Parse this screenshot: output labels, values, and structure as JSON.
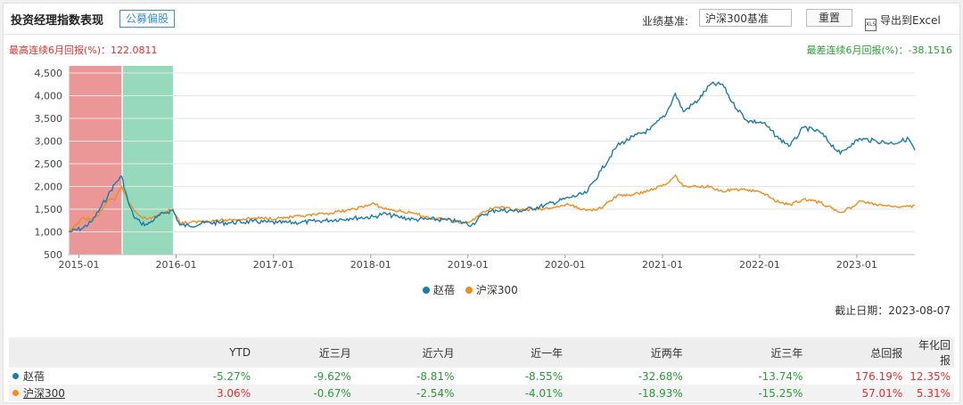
{
  "header": {
    "title": "投资经理指数表现",
    "tag": "公募偏股",
    "benchmark_label": "业绩基准:",
    "benchmark_value": "沪深300基准",
    "reset_label": "重置",
    "export_icon_text": "XLS",
    "export_label": "导出到Excel"
  },
  "stats": {
    "best_label": "最高连续6月回报(%)：",
    "best_value": "122.0811",
    "worst_label": "最差连续6月回报(%)：",
    "worst_value": "-38.1516"
  },
  "as_of": "截止日期：2023-08-07",
  "colors": {
    "manager": "#1b7ca8",
    "benchmark": "#f08c1c",
    "best_band": "#e06060",
    "worst_band": "#5fc49a"
  },
  "chart_data": {
    "type": "line",
    "title": "",
    "xlabel": "",
    "ylabel": "",
    "x_ticks": [
      "2015-01",
      "2016-01",
      "2017-01",
      "2018-01",
      "2019-01",
      "2020-01",
      "2021-01",
      "2022-01",
      "2023-01"
    ],
    "y_ticks": [
      "500",
      "1,000",
      "1,500",
      "2,000",
      "2,500",
      "3,000",
      "3,500",
      "4,000",
      "4,500"
    ],
    "xlim": [
      "2014-11-20",
      "2023-08-07"
    ],
    "ylim": [
      500,
      4500
    ],
    "legend": "bottom",
    "grid": true,
    "bands": [
      {
        "name": "best-6m",
        "from": "2014-11-25",
        "to": "2015-06-10"
      },
      {
        "name": "worst-6m",
        "from": "2015-06-15",
        "to": "2015-12-20"
      }
    ],
    "series": [
      {
        "name": "赵蓓",
        "points": [
          [
            "2014-11-25",
            1000
          ],
          [
            "2015-01-15",
            1080
          ],
          [
            "2015-02-20",
            1240
          ],
          [
            "2015-03-20",
            1500
          ],
          [
            "2015-04-20",
            1800
          ],
          [
            "2015-05-15",
            2050
          ],
          [
            "2015-06-10",
            2230
          ],
          [
            "2015-07-05",
            1650
          ],
          [
            "2015-07-25",
            1350
          ],
          [
            "2015-08-20",
            1200
          ],
          [
            "2015-09-15",
            1160
          ],
          [
            "2015-10-20",
            1320
          ],
          [
            "2015-11-20",
            1420
          ],
          [
            "2015-12-20",
            1480
          ],
          [
            "2016-01-15",
            1150
          ],
          [
            "2016-02-20",
            1130
          ],
          [
            "2016-04-15",
            1200
          ],
          [
            "2016-07-15",
            1200
          ],
          [
            "2016-10-15",
            1230
          ],
          [
            "2017-01-15",
            1200
          ],
          [
            "2017-04-15",
            1210
          ],
          [
            "2017-07-15",
            1250
          ],
          [
            "2017-10-15",
            1300
          ],
          [
            "2018-01-15",
            1330
          ],
          [
            "2018-02-15",
            1400
          ],
          [
            "2018-04-15",
            1330
          ],
          [
            "2018-06-15",
            1270
          ],
          [
            "2018-08-15",
            1280
          ],
          [
            "2018-10-15",
            1260
          ],
          [
            "2018-12-20",
            1200
          ],
          [
            "2019-01-15",
            1150
          ],
          [
            "2019-02-28",
            1380
          ],
          [
            "2019-04-15",
            1480
          ],
          [
            "2019-07-15",
            1460
          ],
          [
            "2019-10-15",
            1580
          ],
          [
            "2020-01-15",
            1750
          ],
          [
            "2020-03-20",
            1850
          ],
          [
            "2020-05-15",
            2350
          ],
          [
            "2020-07-15",
            2900
          ],
          [
            "2020-09-15",
            3100
          ],
          [
            "2020-11-15",
            3250
          ],
          [
            "2021-01-15",
            3600
          ],
          [
            "2021-02-18",
            4050
          ],
          [
            "2021-03-20",
            3650
          ],
          [
            "2021-05-15",
            3900
          ],
          [
            "2021-06-30",
            4250
          ],
          [
            "2021-08-15",
            4250
          ],
          [
            "2021-09-20",
            3850
          ],
          [
            "2021-11-15",
            3450
          ],
          [
            "2022-01-15",
            3400
          ],
          [
            "2022-03-15",
            3050
          ],
          [
            "2022-04-26",
            2900
          ],
          [
            "2022-06-15",
            3300
          ],
          [
            "2022-08-15",
            3200
          ],
          [
            "2022-10-31",
            2720
          ],
          [
            "2022-12-15",
            2950
          ],
          [
            "2023-01-15",
            3050
          ],
          [
            "2023-03-15",
            3000
          ],
          [
            "2023-05-15",
            2950
          ],
          [
            "2023-07-15",
            3050
          ],
          [
            "2023-08-07",
            2800
          ]
        ]
      },
      {
        "name": "沪深300",
        "points": [
          [
            "2014-11-25",
            1000
          ],
          [
            "2015-01-15",
            1300
          ],
          [
            "2015-02-20",
            1280
          ],
          [
            "2015-03-20",
            1400
          ],
          [
            "2015-04-20",
            1700
          ],
          [
            "2015-05-15",
            1700
          ],
          [
            "2015-06-10",
            2000
          ],
          [
            "2015-07-05",
            1680
          ],
          [
            "2015-07-25",
            1500
          ],
          [
            "2015-08-20",
            1350
          ],
          [
            "2015-09-15",
            1280
          ],
          [
            "2015-10-20",
            1360
          ],
          [
            "2015-11-20",
            1440
          ],
          [
            "2015-12-20",
            1500
          ],
          [
            "2016-01-15",
            1200
          ],
          [
            "2016-02-20",
            1200
          ],
          [
            "2016-04-15",
            1240
          ],
          [
            "2016-07-15",
            1260
          ],
          [
            "2016-10-15",
            1300
          ],
          [
            "2017-01-15",
            1300
          ],
          [
            "2017-04-15",
            1340
          ],
          [
            "2017-07-15",
            1400
          ],
          [
            "2017-10-15",
            1480
          ],
          [
            "2018-01-15",
            1620
          ],
          [
            "2018-02-15",
            1520
          ],
          [
            "2018-04-15",
            1460
          ],
          [
            "2018-06-15",
            1400
          ],
          [
            "2018-08-15",
            1300
          ],
          [
            "2018-10-15",
            1280
          ],
          [
            "2018-12-20",
            1200
          ],
          [
            "2019-01-15",
            1240
          ],
          [
            "2019-02-28",
            1450
          ],
          [
            "2019-04-15",
            1550
          ],
          [
            "2019-07-15",
            1480
          ],
          [
            "2019-10-15",
            1500
          ],
          [
            "2020-01-15",
            1600
          ],
          [
            "2020-03-20",
            1470
          ],
          [
            "2020-05-15",
            1520
          ],
          [
            "2020-07-15",
            1800
          ],
          [
            "2020-09-15",
            1820
          ],
          [
            "2020-11-15",
            1920
          ],
          [
            "2021-01-15",
            2050
          ],
          [
            "2021-02-18",
            2250
          ],
          [
            "2021-03-20",
            2000
          ],
          [
            "2021-05-15",
            2000
          ],
          [
            "2021-06-30",
            2000
          ],
          [
            "2021-08-15",
            1880
          ],
          [
            "2021-09-20",
            1930
          ],
          [
            "2021-11-15",
            1930
          ],
          [
            "2022-01-15",
            1850
          ],
          [
            "2022-03-15",
            1650
          ],
          [
            "2022-04-26",
            1600
          ],
          [
            "2022-06-15",
            1720
          ],
          [
            "2022-08-15",
            1650
          ],
          [
            "2022-10-31",
            1430
          ],
          [
            "2022-12-15",
            1550
          ],
          [
            "2023-01-15",
            1680
          ],
          [
            "2023-03-15",
            1600
          ],
          [
            "2023-05-15",
            1550
          ],
          [
            "2023-07-15",
            1560
          ],
          [
            "2023-08-07",
            1580
          ]
        ]
      }
    ]
  },
  "table": {
    "columns": [
      "",
      "YTD",
      "近三月",
      "近六月",
      "近一年",
      "近两年",
      "近三年",
      "总回报",
      "年化回报"
    ],
    "rows": [
      {
        "name": "赵蓓",
        "values": [
          "-5.27%",
          "-9.62%",
          "-8.81%",
          "-8.55%",
          "-32.68%",
          "-13.74%",
          "176.19%",
          "12.35%"
        ]
      },
      {
        "name": "沪深300",
        "values": [
          "3.06%",
          "-0.67%",
          "-2.54%",
          "-4.01%",
          "-18.93%",
          "-15.25%",
          "57.01%",
          "5.31%"
        ]
      }
    ]
  }
}
